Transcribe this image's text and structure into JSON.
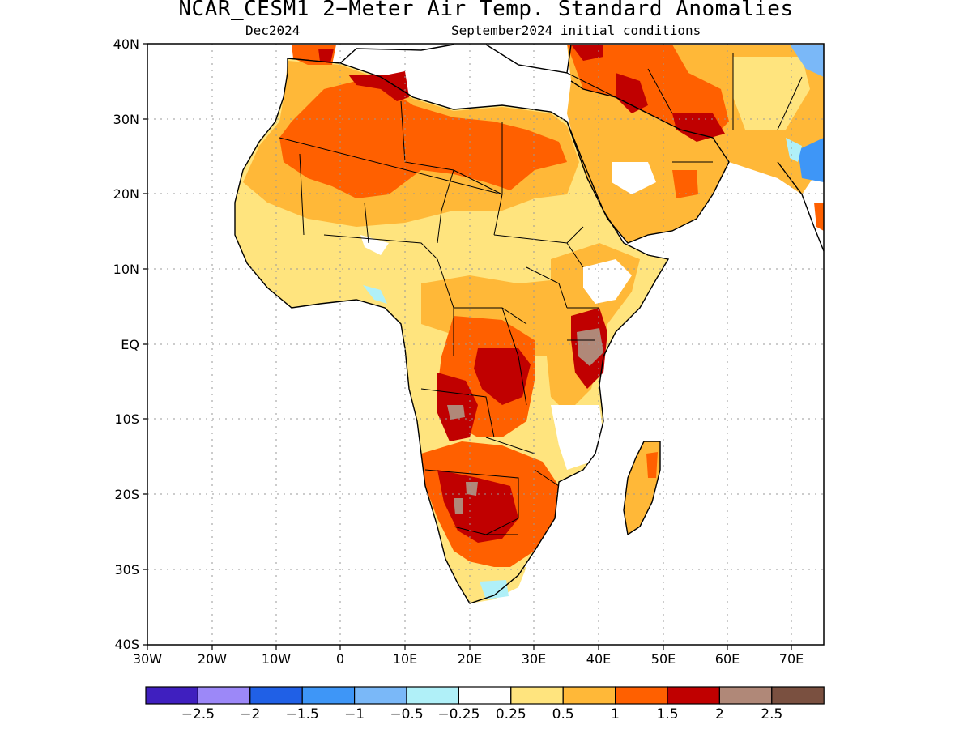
{
  "title": "NCAR_CESM1 2−Meter Air Temp. Standard Anomalies",
  "subtitle_left": "Dec2024",
  "subtitle_right": "September2024 initial conditions",
  "lat_labels": [
    "40N",
    "30N",
    "20N",
    "10N",
    "EQ",
    "10S",
    "20S",
    "30S",
    "40S"
  ],
  "lon_labels": [
    "30W",
    "20W",
    "10W",
    "0",
    "10E",
    "20E",
    "30E",
    "40E",
    "50E",
    "60E",
    "70E"
  ],
  "lon_range": [
    -30,
    75
  ],
  "lat_range": [
    -40,
    40
  ],
  "colorbar": {
    "colors": [
      "#3f1fbf",
      "#9c88f8",
      "#2060e6",
      "#3e96f7",
      "#7ab8f8",
      "#b0f0f8",
      "#ffffff",
      "#ffe47e",
      "#ffb838",
      "#ff6000",
      "#c00000",
      "#b08878",
      "#7a5040"
    ],
    "labels": [
      "−2.5",
      "−2",
      "−1.5",
      "−1",
      "−0.5",
      "−0.25",
      "0.25",
      "0.5",
      "1",
      "1.5",
      "2",
      "2.5"
    ]
  },
  "legend_values": [
    -2.5,
    -2,
    -1.5,
    -1,
    -0.5,
    -0.25,
    0.25,
    0.5,
    1,
    1.5,
    2,
    2.5
  ]
}
